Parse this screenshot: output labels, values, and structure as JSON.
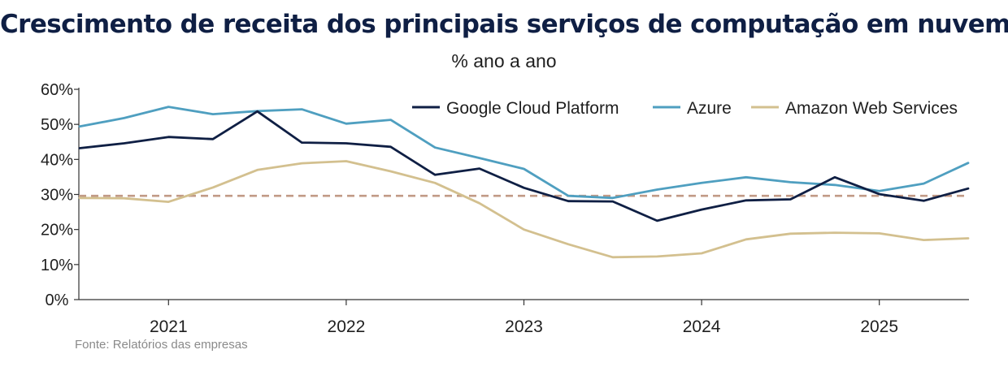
{
  "title": "Crescimento de receita dos principais serviços de computação em nuvem",
  "subtitle": "% ano a ano",
  "source": "Fonte: Relatórios das empresas",
  "chart_data": {
    "type": "line",
    "x": [
      "2020 Q3",
      "2020 Q4",
      "2021 Q1",
      "2021 Q2",
      "2021 Q3",
      "2021 Q4",
      "2022 Q1",
      "2022 Q2",
      "2022 Q3",
      "2022 Q4",
      "2023 Q1",
      "2023 Q2",
      "2023 Q3",
      "2023 Q4",
      "2024 Q1",
      "2024 Q2",
      "2024 Q3",
      "2024 Q4",
      "2025 Q1",
      "2025 Q2",
      "2025 Q3"
    ],
    "x_ticks": [
      "2021",
      "2022",
      "2023",
      "2024",
      "2025"
    ],
    "ylim": [
      0,
      60
    ],
    "y_ticks": [
      "0%",
      "10%",
      "20%",
      "30%",
      "40%",
      "50%",
      "60%"
    ],
    "reference_line": {
      "value": 29.6,
      "color": "#c19a86",
      "style": "dashed"
    },
    "legend_position": "top-right",
    "series": [
      {
        "name": "Google Cloud Platform",
        "color": "#0f1f44",
        "values": [
          43.2,
          44.6,
          46.4,
          45.8,
          53.7,
          44.8,
          44.6,
          43.6,
          35.6,
          37.4,
          31.9,
          28.1,
          28.0,
          22.5,
          25.7,
          28.3,
          28.6,
          34.9,
          30.1,
          28.2,
          31.7
        ]
      },
      {
        "name": "Azure",
        "color": "#4f9fc0",
        "values": [
          49.4,
          51.8,
          55.0,
          52.9,
          53.8,
          54.3,
          50.2,
          51.3,
          43.4,
          40.4,
          37.3,
          29.6,
          29.0,
          31.4,
          33.3,
          34.9,
          33.5,
          32.7,
          31.0,
          33.1,
          39.0
        ]
      },
      {
        "name": "Amazon Web Services",
        "color": "#d3c08f",
        "values": [
          29.0,
          28.9,
          27.9,
          32.0,
          37.0,
          38.9,
          39.5,
          36.6,
          33.3,
          27.5,
          20.0,
          15.8,
          12.1,
          12.3,
          13.2,
          17.2,
          18.8,
          19.1,
          18.9,
          17.0,
          17.5
        ]
      }
    ]
  }
}
